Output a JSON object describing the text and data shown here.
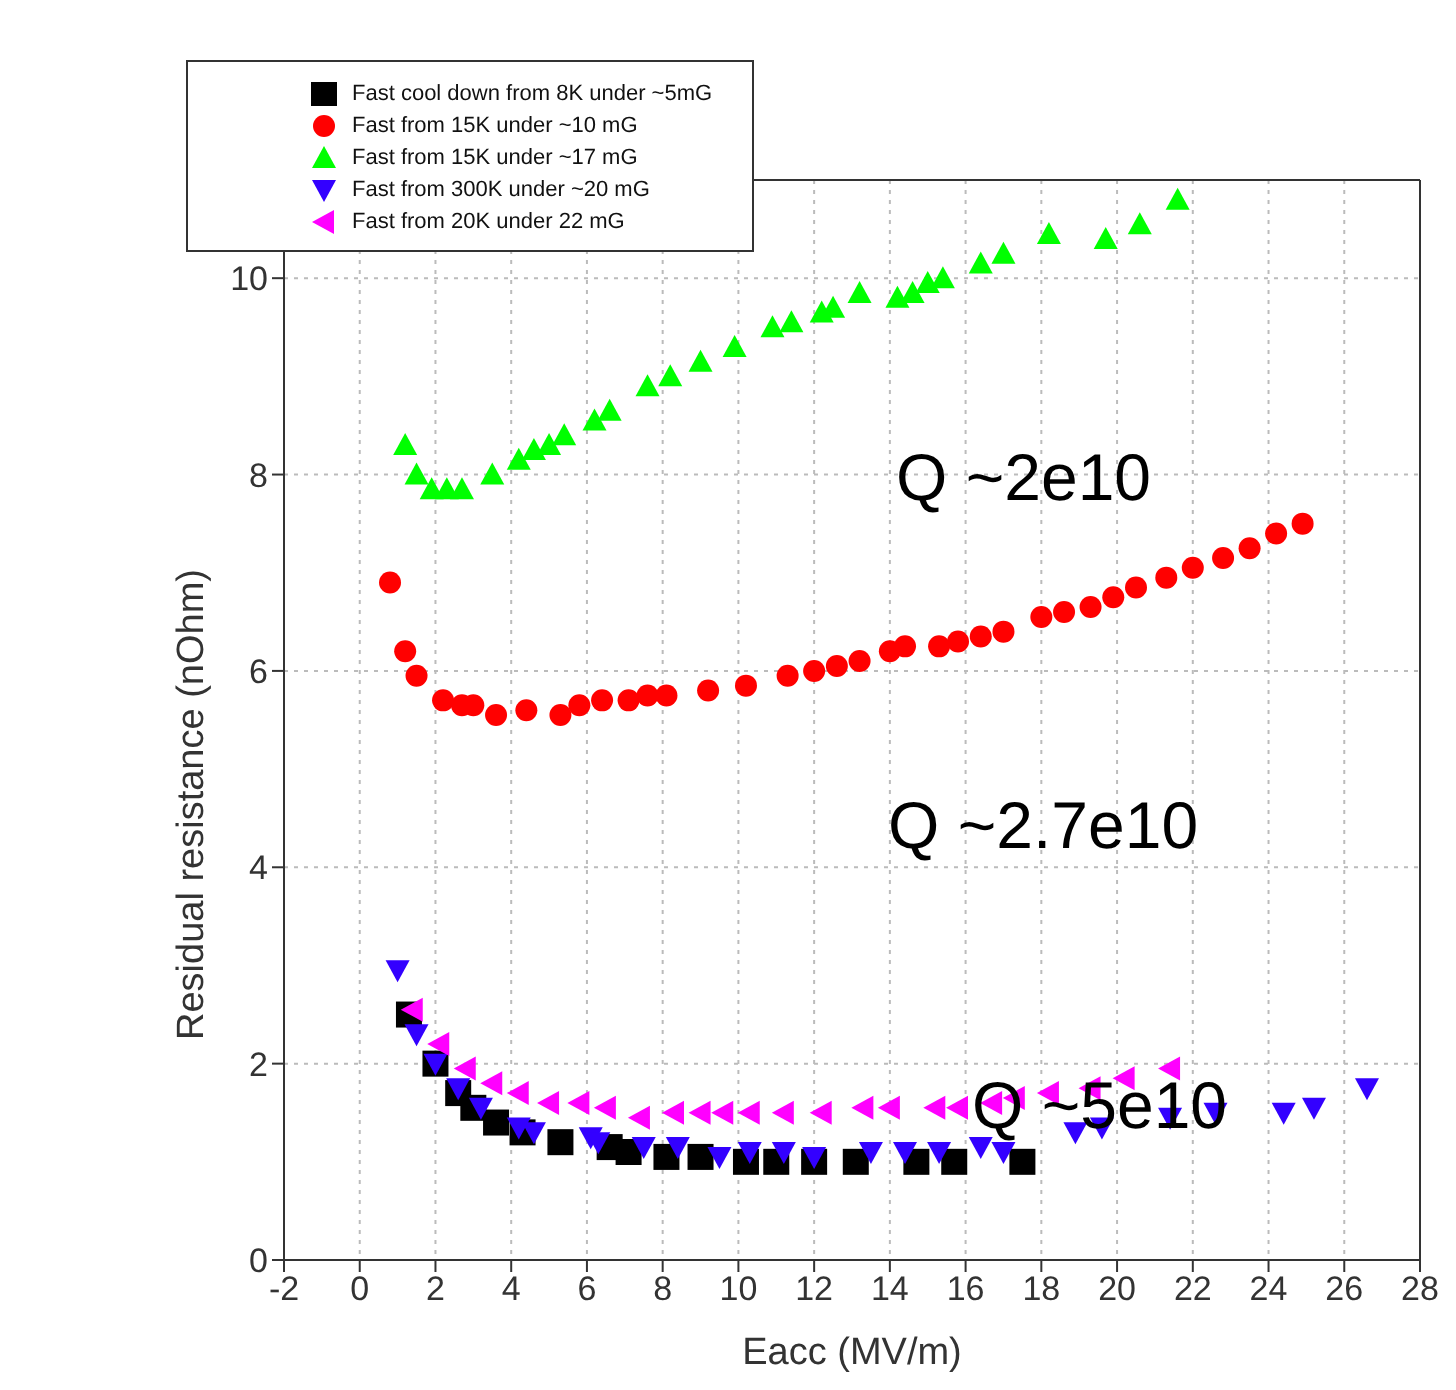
{
  "chart_data": {
    "type": "scatter",
    "xlabel": "Eacc (MV/m)",
    "ylabel": "Residual resistance (nOhm)",
    "xlim": [
      -2,
      28
    ],
    "xticks": [
      -2,
      0,
      2,
      4,
      6,
      8,
      10,
      12,
      14,
      16,
      18,
      20,
      22,
      24,
      26,
      28
    ],
    "ylim": [
      0,
      11
    ],
    "yticks": [
      0,
      2,
      4,
      6,
      8,
      10
    ],
    "grid": true,
    "legend": "top left",
    "annotations": [
      "Q ~2e10",
      "Q ~2.7e10",
      "Q ~5e10"
    ],
    "series": [
      {
        "name": "Fast cool down from 8K under ~5mG",
        "color": "#000000",
        "marker": "square",
        "x": [
          1.3,
          2.0,
          2.6,
          3.0,
          3.6,
          4.3,
          5.3,
          6.6,
          7.1,
          8.1,
          9.0,
          10.2,
          11.0,
          12.0,
          13.1,
          14.7,
          15.7,
          17.5
        ],
        "values": [
          2.5,
          2.0,
          1.7,
          1.55,
          1.4,
          1.3,
          1.2,
          1.15,
          1.1,
          1.05,
          1.05,
          1.0,
          1.0,
          1.0,
          1.0,
          1.0,
          1.0,
          1.0
        ]
      },
      {
        "name": "Fast from 15K under ~10 mG",
        "color": "#ff0000",
        "marker": "circle",
        "x": [
          0.8,
          1.2,
          1.5,
          2.2,
          2.7,
          3.0,
          3.6,
          4.4,
          5.3,
          5.8,
          6.4,
          7.1,
          7.6,
          8.1,
          9.2,
          10.2,
          11.3,
          12.0,
          12.6,
          13.2,
          14.0,
          14.4,
          15.3,
          15.8,
          16.4,
          17.0,
          18.0,
          18.6,
          19.3,
          19.9,
          20.5,
          21.3,
          22.0,
          22.8,
          23.5,
          24.2,
          24.9
        ],
        "values": [
          6.9,
          6.2,
          5.95,
          5.7,
          5.65,
          5.65,
          5.55,
          5.6,
          5.55,
          5.65,
          5.7,
          5.7,
          5.75,
          5.75,
          5.8,
          5.85,
          5.95,
          6.0,
          6.05,
          6.1,
          6.2,
          6.25,
          6.25,
          6.3,
          6.35,
          6.4,
          6.55,
          6.6,
          6.65,
          6.75,
          6.85,
          6.95,
          7.05,
          7.15,
          7.25,
          7.4,
          7.5
        ]
      },
      {
        "name": "Fast from 15K under ~17 mG",
        "color": "#00ff00",
        "marker": "triangle",
        "x": [
          1.2,
          1.5,
          1.9,
          2.3,
          2.7,
          3.5,
          4.2,
          4.6,
          5.0,
          5.4,
          6.2,
          6.6,
          7.6,
          8.2,
          9.0,
          9.9,
          10.9,
          11.4,
          12.2,
          12.5,
          13.2,
          14.2,
          14.6,
          15.0,
          15.4,
          16.4,
          17.0,
          18.2,
          19.7,
          20.6,
          21.6
        ],
        "values": [
          8.3,
          8.0,
          7.85,
          7.85,
          7.85,
          8.0,
          8.15,
          8.25,
          8.3,
          8.4,
          8.55,
          8.65,
          8.9,
          9.0,
          9.15,
          9.3,
          9.5,
          9.55,
          9.65,
          9.7,
          9.85,
          9.8,
          9.85,
          9.95,
          10.0,
          10.15,
          10.25,
          10.45,
          10.4,
          10.55,
          10.8
        ]
      },
      {
        "name": "Fast from 300K under ~20 mG",
        "color": "#3300ff",
        "marker": "triangle-down",
        "x": [
          1.0,
          1.5,
          2.0,
          2.6,
          3.2,
          4.2,
          4.6,
          6.1,
          6.3,
          7.5,
          8.4,
          9.5,
          10.3,
          11.2,
          12.0,
          13.5,
          14.4,
          15.3,
          16.4,
          17.0,
          18.9,
          19.6,
          21.4,
          22.6,
          24.4,
          25.2,
          26.6
        ],
        "values": [
          2.95,
          2.3,
          2.0,
          1.75,
          1.55,
          1.35,
          1.3,
          1.25,
          1.2,
          1.15,
          1.15,
          1.05,
          1.1,
          1.1,
          1.05,
          1.1,
          1.1,
          1.1,
          1.15,
          1.1,
          1.3,
          1.35,
          1.45,
          1.5,
          1.5,
          1.55,
          1.75
        ]
      },
      {
        "name": "Fast from 20K under 22 mG",
        "color": "#ff00ff",
        "marker": "triangle-left",
        "x": [
          1.4,
          2.1,
          2.8,
          3.5,
          4.2,
          5.0,
          5.8,
          6.5,
          7.4,
          8.3,
          9.0,
          9.6,
          10.3,
          11.2,
          12.2,
          13.3,
          14.0,
          15.2,
          15.8,
          16.7,
          17.3,
          18.2,
          19.3,
          20.2,
          21.4
        ],
        "values": [
          2.55,
          2.2,
          1.95,
          1.8,
          1.7,
          1.6,
          1.6,
          1.55,
          1.45,
          1.5,
          1.5,
          1.5,
          1.5,
          1.5,
          1.5,
          1.55,
          1.55,
          1.55,
          1.55,
          1.6,
          1.65,
          1.7,
          1.75,
          1.85,
          1.95
        ]
      }
    ]
  }
}
